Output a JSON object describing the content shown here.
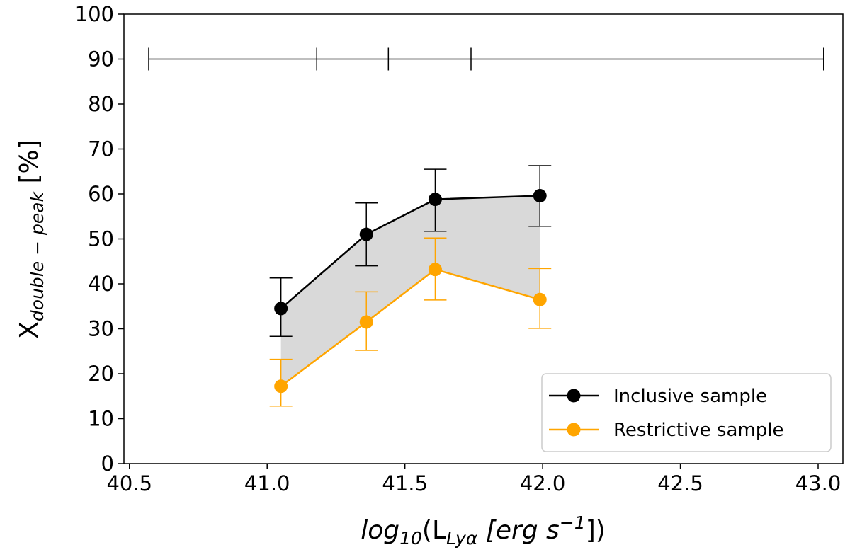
{
  "chart_data": {
    "type": "line",
    "title": "",
    "xlabel": {
      "base": "log",
      "sub1": "10",
      "mid": "(L",
      "sub2": "Lyα",
      "unit": " [erg s",
      "sup": "−1",
      "tail": "])"
    },
    "ylabel": {
      "base": "X",
      "sub": "double − peak",
      "unit": " [%]"
    },
    "xlim": [
      40.48,
      43.09
    ],
    "ylim": [
      0,
      100
    ],
    "xticks": [
      "40.5",
      "41.0",
      "41.5",
      "42.0",
      "42.5",
      "43.0"
    ],
    "xtick_values": [
      40.5,
      41.0,
      41.5,
      42.0,
      42.5,
      43.0
    ],
    "yticks": [
      "0",
      "10",
      "20",
      "30",
      "40",
      "50",
      "60",
      "70",
      "80",
      "90",
      "100"
    ],
    "ytick_values": [
      0,
      10,
      20,
      30,
      40,
      50,
      60,
      70,
      80,
      90,
      100
    ],
    "bin_edges": {
      "y": 90,
      "edges": [
        40.57,
        41.18,
        41.44,
        41.74,
        43.02
      ]
    },
    "series": [
      {
        "name": "Inclusive sample",
        "color": "#000000",
        "x": [
          41.05,
          41.36,
          41.61,
          41.99
        ],
        "y": [
          34.5,
          51.0,
          58.8,
          59.6
        ],
        "err_low": [
          28.3,
          44.0,
          51.7,
          52.8
        ],
        "err_high": [
          41.3,
          58.0,
          65.5,
          66.3
        ]
      },
      {
        "name": "Restrictive sample",
        "color": "#ffa500",
        "x": [
          41.05,
          41.36,
          41.61,
          41.99
        ],
        "y": [
          17.2,
          31.5,
          43.2,
          36.5
        ],
        "err_low": [
          12.8,
          25.2,
          36.4,
          30.1
        ],
        "err_high": [
          23.2,
          38.2,
          50.2,
          43.4
        ]
      }
    ],
    "fill_between": {
      "color": "#d9d9d9",
      "between": [
        "Inclusive sample",
        "Restrictive sample"
      ]
    },
    "legend": {
      "placement": "lower-right"
    },
    "grid": false
  }
}
